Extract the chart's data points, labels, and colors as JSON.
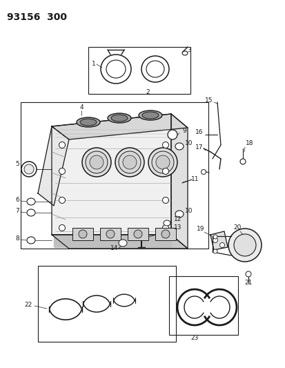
{
  "title": "93156  300",
  "bg_color": "#ffffff",
  "fig_width": 4.14,
  "fig_height": 5.33,
  "dpi": 100,
  "line_color": "#1a1a1a",
  "text_color": "#1a1a1a"
}
